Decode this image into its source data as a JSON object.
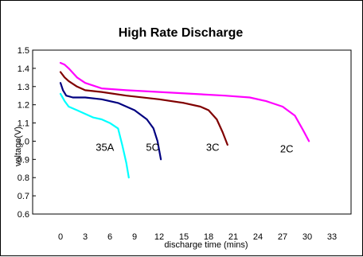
{
  "chart_data": {
    "type": "line",
    "title": "High Rate Discharge",
    "xlabel": "discharge time (mins)",
    "ylabel": "voltage(V)",
    "xlim": [
      0,
      33
    ],
    "ylim": [
      0.6,
      1.5
    ],
    "x_ticks": [
      "0",
      "3",
      "6",
      "9",
      "12",
      "15",
      "18",
      "21",
      "24",
      "27",
      "30",
      "33"
    ],
    "y_ticks": [
      "0.6",
      "0.7",
      "0.8",
      "0.9",
      "1.0",
      "1.1",
      "1.2",
      "1.3",
      "1.4",
      "1.5"
    ],
    "grid": false,
    "legend": "none",
    "series": [
      {
        "name": "35A",
        "color": "#00FFFF",
        "points": [
          [
            0,
            1.26
          ],
          [
            0.5,
            1.22
          ],
          [
            1,
            1.19
          ],
          [
            2,
            1.17
          ],
          [
            3,
            1.15
          ],
          [
            4,
            1.13
          ],
          [
            5,
            1.12
          ],
          [
            6,
            1.1
          ],
          [
            7,
            1.07
          ],
          [
            7.5,
            0.98
          ],
          [
            8,
            0.88
          ],
          [
            8.3,
            0.8
          ]
        ]
      },
      {
        "name": "5C",
        "color": "#000080",
        "points": [
          [
            0,
            1.32
          ],
          [
            0.3,
            1.28
          ],
          [
            0.7,
            1.25
          ],
          [
            1.5,
            1.24
          ],
          [
            3,
            1.24
          ],
          [
            5,
            1.23
          ],
          [
            7,
            1.21
          ],
          [
            9,
            1.17
          ],
          [
            10.5,
            1.12
          ],
          [
            11.3,
            1.07
          ],
          [
            11.8,
            1.0
          ],
          [
            12.2,
            0.9
          ]
        ]
      },
      {
        "name": "3C",
        "color": "#800000",
        "points": [
          [
            0,
            1.38
          ],
          [
            0.5,
            1.35
          ],
          [
            1,
            1.33
          ],
          [
            2,
            1.3
          ],
          [
            3,
            1.28
          ],
          [
            5,
            1.27
          ],
          [
            8,
            1.25
          ],
          [
            12,
            1.23
          ],
          [
            15,
            1.21
          ],
          [
            17,
            1.19
          ],
          [
            18,
            1.17
          ],
          [
            19,
            1.12
          ],
          [
            19.7,
            1.05
          ],
          [
            20.3,
            0.98
          ]
        ]
      },
      {
        "name": "2C",
        "color": "#FF00FF",
        "points": [
          [
            0,
            1.43
          ],
          [
            0.5,
            1.42
          ],
          [
            1,
            1.4
          ],
          [
            2,
            1.35
          ],
          [
            3,
            1.32
          ],
          [
            5,
            1.29
          ],
          [
            8,
            1.28
          ],
          [
            12,
            1.27
          ],
          [
            16,
            1.26
          ],
          [
            20,
            1.25
          ],
          [
            23,
            1.24
          ],
          [
            25,
            1.22
          ],
          [
            27,
            1.19
          ],
          [
            28.5,
            1.14
          ],
          [
            29.5,
            1.06
          ],
          [
            30.2,
            1.0
          ]
        ]
      }
    ],
    "series_labels": [
      {
        "text": "35A",
        "x": 5.4,
        "y": 0.97
      },
      {
        "text": "5C",
        "x": 11.2,
        "y": 0.97
      },
      {
        "text": "3C",
        "x": 18.5,
        "y": 0.97
      },
      {
        "text": "2C",
        "x": 27.5,
        "y": 0.96
      }
    ]
  }
}
